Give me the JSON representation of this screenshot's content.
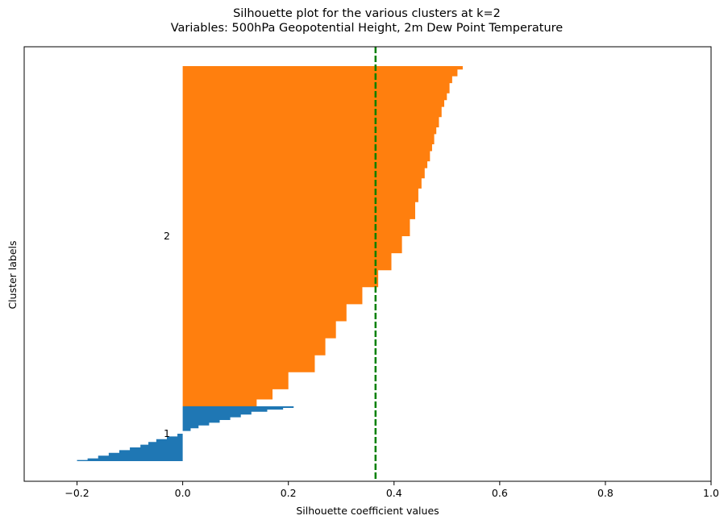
{
  "chart_data": {
    "type": "bar",
    "orientation": "horizontal",
    "title_line1": "Silhouette plot for the various clusters at k=2",
    "title_line2": "Variables: 500hPa Geopotential Height, 2m Dew Point Temperature",
    "xlabel": "Silhouette coefficient values",
    "ylabel": "Cluster labels",
    "xlim": [
      -0.3,
      1.0
    ],
    "xticks": [
      -0.2,
      0.0,
      0.2,
      0.4,
      0.6,
      0.8,
      1.0
    ],
    "xtick_labels": [
      "−0.2",
      "0.0",
      "0.2",
      "0.4",
      "0.6",
      "0.8",
      "1.0"
    ],
    "grid": false,
    "average_silhouette": 0.365,
    "average_line_color": "#008000",
    "clusters": [
      {
        "label": "1",
        "color": "#1f77b4",
        "profile_fraction": [
          0.0,
          0.03,
          0.06,
          0.1,
          0.15,
          0.2,
          0.25,
          0.3,
          0.35,
          0.4,
          0.45,
          0.5,
          0.55,
          0.6,
          0.65,
          0.7,
          0.75,
          0.8,
          0.85,
          0.9,
          0.95,
          0.98,
          1.0
        ],
        "profile_value": [
          0.21,
          0.19,
          0.16,
          0.13,
          0.11,
          0.09,
          0.07,
          0.05,
          0.03,
          0.015,
          0.0,
          -0.01,
          -0.03,
          -0.05,
          -0.065,
          -0.08,
          -0.1,
          -0.12,
          -0.14,
          -0.16,
          -0.18,
          -0.2,
          -0.205
        ]
      },
      {
        "label": "2",
        "color": "#ff7f0e",
        "profile_fraction": [
          0.0,
          0.01,
          0.03,
          0.05,
          0.08,
          0.1,
          0.12,
          0.15,
          0.18,
          0.2,
          0.23,
          0.25,
          0.28,
          0.3,
          0.33,
          0.36,
          0.4,
          0.45,
          0.5,
          0.55,
          0.6,
          0.65,
          0.7,
          0.75,
          0.8,
          0.85,
          0.9,
          0.95,
          0.98,
          1.0
        ],
        "profile_value": [
          0.53,
          0.52,
          0.51,
          0.505,
          0.5,
          0.495,
          0.49,
          0.485,
          0.48,
          0.476,
          0.472,
          0.468,
          0.463,
          0.458,
          0.452,
          0.446,
          0.44,
          0.43,
          0.415,
          0.395,
          0.37,
          0.34,
          0.31,
          0.29,
          0.27,
          0.25,
          0.2,
          0.17,
          0.14,
          0.12
        ]
      }
    ]
  }
}
